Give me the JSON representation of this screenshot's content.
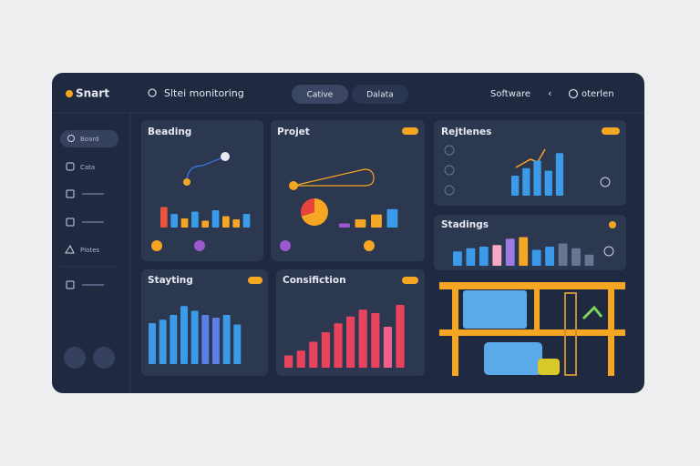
{
  "header": {
    "logo": "Snart",
    "search": "Sltei monitoring",
    "tabs": [
      "Cative",
      "Dalata"
    ],
    "menu": "Software",
    "user": "oterlen"
  },
  "sidebar": {
    "items": [
      "Board",
      "Cata",
      "Plotes"
    ]
  },
  "panels": [
    {
      "title": "Beading",
      "bars": {
        "values": [
          45,
          30,
          20,
          35,
          15,
          38,
          25,
          18,
          30
        ],
        "colors": [
          "#e8543c",
          "#3b9be8",
          "#f5a623",
          "#3b9be8",
          "#f5a623",
          "#3b9be8",
          "#f5a623",
          "#f5a623",
          "#3b9be8"
        ]
      }
    },
    {
      "title": "Projet",
      "bars": {
        "values": [
          10,
          20,
          32,
          45
        ],
        "colors": [
          "#9b59d0",
          "#f5a623",
          "#f5a623",
          "#3b9be8"
        ]
      },
      "pie": {
        "values": [
          70,
          30
        ],
        "colors": [
          "#f5a623",
          "#e8433c"
        ]
      }
    },
    {
      "title": "Rejtlenes",
      "bars": {
        "values": [
          40,
          55,
          70,
          50,
          85
        ],
        "colors": [
          "#3b9be8",
          "#3b9be8",
          "#3b9be8",
          "#3b9be8",
          "#3b9be8"
        ]
      }
    },
    {
      "title": "Stadings",
      "bars": {
        "values": [
          45,
          55,
          60,
          65,
          85,
          90,
          50,
          60,
          70,
          55,
          35
        ],
        "colors": [
          "#3b9be8",
          "#3b9be8",
          "#3b9be8",
          "#f7a8c4",
          "#9b7be0",
          "#f5a623",
          "#3b9be8",
          "#3b9be8",
          "#6a7593",
          "#6a7593",
          "#6a7593"
        ]
      }
    },
    {
      "title": "Stayting",
      "bars": {
        "values": [
          60,
          65,
          72,
          85,
          78,
          72,
          68,
          72,
          58
        ],
        "colors": [
          "#3b9be8",
          "#3b9be8",
          "#3b9be8",
          "#3b9be8",
          "#3b9be8",
          "#5b7fe8",
          "#5b7fe8",
          "#3b9be8",
          "#3b9be8"
        ]
      }
    },
    {
      "title": "Consifiction",
      "bars": {
        "values": [
          18,
          25,
          38,
          52,
          65,
          75,
          85,
          80,
          60,
          92
        ],
        "colors": [
          "#e8435c",
          "#e8435c",
          "#e8435c",
          "#e8435c",
          "#e8435c",
          "#e8435c",
          "#e8435c",
          "#e8435c",
          "#f0608a",
          "#e8435c"
        ]
      }
    }
  ]
}
